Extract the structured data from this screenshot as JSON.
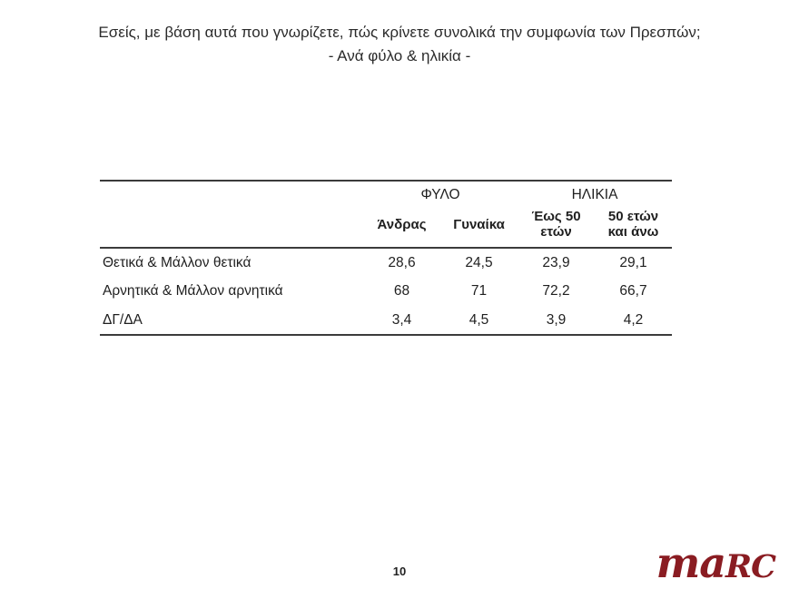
{
  "title": {
    "line1": "Εσείς, με βάση αυτά που γνωρίζετε, πώς κρίνετε συνολικά την συμφωνία των Πρεσπών;",
    "line2": "- Ανά φύλο & ηλικία -"
  },
  "table": {
    "group_headers": [
      {
        "label": "ΦΥΛΟ"
      },
      {
        "label": "ΗΛΙΚΙΑ"
      }
    ],
    "column_headers": [
      "Άνδρας",
      "Γυναίκα",
      "Έως 50\nετών",
      "50 ετών\nκαι άνω"
    ],
    "rows": [
      {
        "label": "Θετικά & Μάλλον θετικά",
        "values": [
          "28,6",
          "24,5",
          "23,9",
          "29,1"
        ]
      },
      {
        "label": "Αρνητικά & Μάλλον αρνητικά",
        "values": [
          "68",
          "71",
          "72,2",
          "66,7"
        ]
      },
      {
        "label": "ΔΓ/ΔΑ",
        "values": [
          "3,4",
          "4,5",
          "3,9",
          "4,2"
        ]
      }
    ]
  },
  "chart_data": {
    "type": "table",
    "title": "Εσείς, με βάση αυτά που γνωρίζετε, πώς κρίνετε συνολικά την συμφωνία των Πρεσπών; - Ανά φύλο & ηλικία -",
    "column_groups": [
      "ΦΥΛΟ",
      "ΗΛΙΚΙΑ"
    ],
    "categories": [
      "Άνδρας",
      "Γυναίκα",
      "Έως 50 ετών",
      "50 ετών και άνω"
    ],
    "series": [
      {
        "name": "Θετικά & Μάλλον θετικά",
        "values": [
          28.6,
          24.5,
          23.9,
          29.1
        ]
      },
      {
        "name": "Αρνητικά & Μάλλον αρνητικά",
        "values": [
          68.0,
          71.0,
          72.2,
          66.7
        ]
      },
      {
        "name": "ΔΓ/ΔΑ",
        "values": [
          3.4,
          4.5,
          3.9,
          4.2
        ]
      }
    ]
  },
  "footer": {
    "page_number": "10"
  },
  "logo": {
    "part1": "ma",
    "part2": "RC",
    "color": "#8a1c22"
  }
}
